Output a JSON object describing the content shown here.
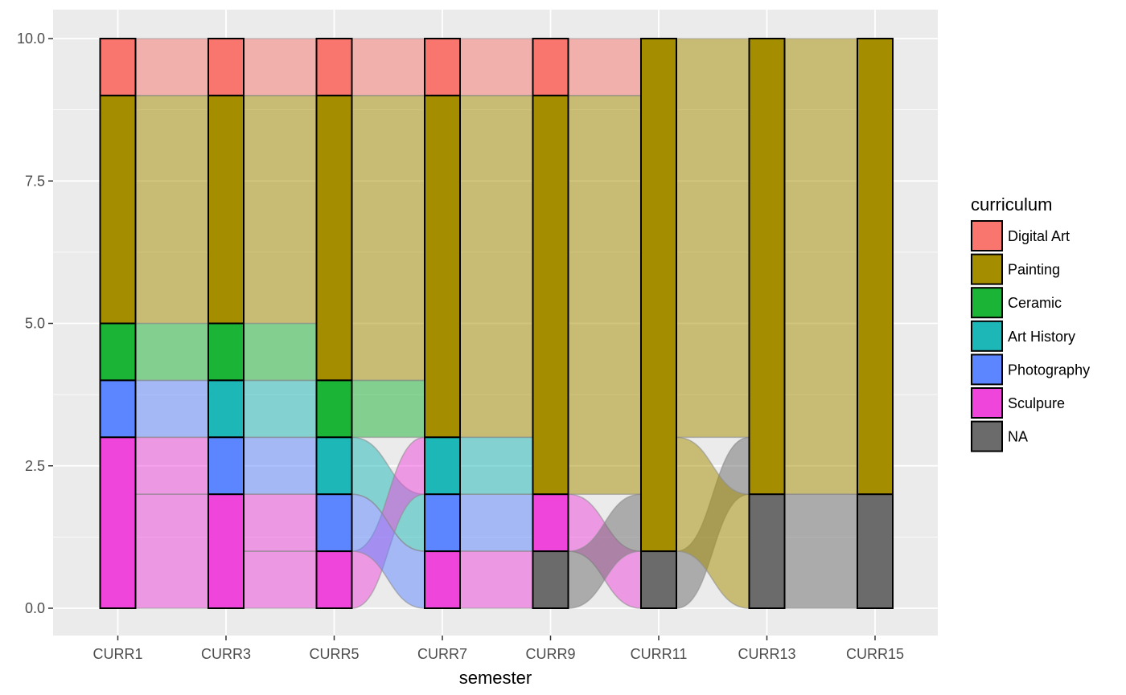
{
  "chart_data": {
    "type": "alluvial",
    "xlabel": "semester",
    "ylabel": "",
    "ylim": [
      0,
      10
    ],
    "y_ticks": [
      "0.0",
      "2.5",
      "5.0",
      "7.5",
      "10.0"
    ],
    "y_tick_values": [
      0,
      2.5,
      5,
      7.5,
      10
    ],
    "categories": [
      "CURR1",
      "CURR3",
      "CURR5",
      "CURR7",
      "CURR9",
      "CURR11",
      "CURR13",
      "CURR15"
    ],
    "legend_title": "curriculum",
    "legend_placement": "right",
    "grid": true,
    "levels": [
      {
        "name": "Digital Art",
        "color": "#F8766D"
      },
      {
        "name": "Painting",
        "color": "#A58D00"
      },
      {
        "name": "Ceramic",
        "color": "#1CB436"
      },
      {
        "name": "Art History",
        "color": "#1DB7B8"
      },
      {
        "name": "Photography",
        "color": "#5C86FF"
      },
      {
        "name": "Sculpure",
        "color": "#EF45DB"
      },
      {
        "name": "NA",
        "color": "#6B6B6B"
      }
    ],
    "students": [
      [
        "Digital Art",
        "Digital Art",
        "Digital Art",
        "Digital Art",
        "Digital Art",
        "Painting",
        "Painting",
        "Painting"
      ],
      [
        "Painting",
        "Painting",
        "Painting",
        "Painting",
        "Painting",
        "Painting",
        "Painting",
        "Painting"
      ],
      [
        "Painting",
        "Painting",
        "Painting",
        "Painting",
        "Painting",
        "Painting",
        "Painting",
        "Painting"
      ],
      [
        "Painting",
        "Painting",
        "Painting",
        "Painting",
        "Painting",
        "Painting",
        "Painting",
        "Painting"
      ],
      [
        "Painting",
        "Painting",
        "Painting",
        "Painting",
        "Painting",
        "Painting",
        "Painting",
        "Painting"
      ],
      [
        "Ceramic",
        "Ceramic",
        "Painting",
        "Painting",
        "Painting",
        "Painting",
        "Painting",
        "Painting"
      ],
      [
        "Photography",
        "Art History",
        "Ceramic",
        "Painting",
        "Painting",
        "Painting",
        "Painting",
        "Painting"
      ],
      [
        "Sculpure",
        "Photography",
        "Art History",
        "Photography",
        "Sculpure",
        "NA",
        "Painting",
        "Painting"
      ],
      [
        "Sculpure",
        "Sculpure",
        "Sculpure",
        "Art History",
        "Painting",
        "Painting",
        "NA",
        "NA"
      ],
      [
        "Sculpure",
        "Sculpure",
        "Photography",
        "Sculpure",
        "NA",
        "Painting",
        "NA",
        "NA"
      ]
    ]
  }
}
